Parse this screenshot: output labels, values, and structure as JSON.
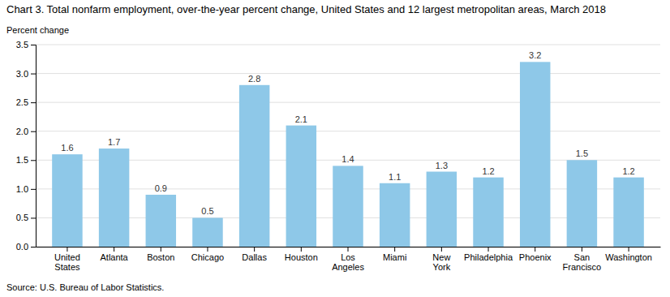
{
  "chart_data": {
    "type": "bar",
    "title": "Chart 3. Total nonfarm employment, over-the-year percent change, United States and 12 largest metropolitan areas, March 2018",
    "ylabel": "Percent change",
    "annotations": [
      "Source: U.S. Bureau of Labor Statistics."
    ],
    "categories": [
      "United\nStates",
      "Atlanta",
      "Boston",
      "Chicago",
      "Dallas",
      "Houston",
      "Los\nAngeles",
      "Miami",
      "New\nYork",
      "Philadelphia",
      "Phoenix",
      "San\nFrancisco",
      "Washington"
    ],
    "values": [
      1.6,
      1.7,
      0.9,
      0.5,
      2.8,
      2.1,
      1.4,
      1.1,
      1.3,
      1.2,
      3.2,
      1.5,
      1.2
    ],
    "color": "#8EC8E8",
    "ylim": [
      0.0,
      3.5
    ],
    "yticks": [
      {
        "value": 0.0,
        "label": "0.0"
      },
      0.5,
      {
        "value": 1.0,
        "label": "1.0"
      },
      1.5,
      {
        "value": 2.0,
        "label": "2.0"
      },
      2.5,
      {
        "value": 3.0,
        "label": "3.0"
      },
      3.5
    ],
    "grid": true,
    "data_labels": true
  }
}
